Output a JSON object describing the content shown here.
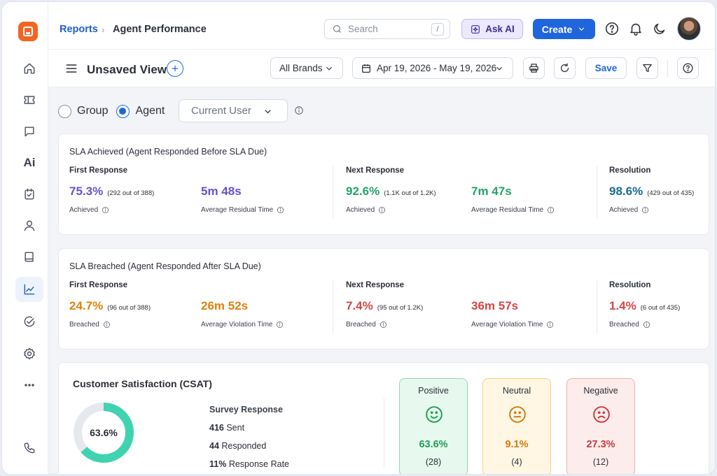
{
  "breadcrumb": {
    "root": "Reports",
    "separator": "›",
    "current": "Agent Performance"
  },
  "search": {
    "placeholder": "Search",
    "shortcut": "/"
  },
  "header": {
    "ask_ai": "Ask AI",
    "create": "Create"
  },
  "sidebar": {
    "ai_label": "Ai"
  },
  "toolbar": {
    "view_title": "Unsaved View",
    "brand_filter": "All Brands",
    "date_range": "Apr 19, 2026 - May 19, 2026",
    "save": "Save"
  },
  "filters": {
    "group_label": "Group",
    "agent_label": "Agent",
    "selected": "agent",
    "user_select": "Current User"
  },
  "sla_achieved": {
    "title": "SLA Achieved (Agent Responded Before SLA Due)",
    "first_response": {
      "head": "First Response",
      "pct": "75.3%",
      "note": "(292 out of 388)",
      "pct_label": "Achieved",
      "time": "5m 48s",
      "time_label": "Average Residual Time"
    },
    "next_response": {
      "head": "Next Response",
      "pct": "92.6%",
      "note": "(1.1K out of 1.2K)",
      "pct_label": "Achieved",
      "time": "7m 47s",
      "time_label": "Average Residual Time"
    },
    "resolution": {
      "head": "Resolution",
      "pct": "98.6%",
      "note": "(429 out of 435)",
      "pct_label": "Achieved"
    }
  },
  "sla_breached": {
    "title": "SLA Breached (Agent Responded After SLA Due)",
    "first_response": {
      "head": "First Response",
      "pct": "24.7%",
      "note": "(96 out of 388)",
      "pct_label": "Breached",
      "time": "26m 52s",
      "time_label": "Average Violation Time"
    },
    "next_response": {
      "head": "Next Response",
      "pct": "7.4%",
      "note": "(95 out of 1.2K)",
      "pct_label": "Breached",
      "time": "36m 57s",
      "time_label": "Average Violation Time"
    },
    "resolution": {
      "head": "Resolution",
      "pct": "1.4%",
      "note": "(6 out of 435)",
      "pct_label": "Breached"
    }
  },
  "csat": {
    "title": "Customer Satisfaction (CSAT)",
    "donut_value": 63.6,
    "donut_label": "63.6%",
    "survey_head": "Survey Response",
    "sent_value": "416",
    "sent_label": "Sent",
    "responded_value": "44",
    "responded_label": "Responded",
    "rate_value": "11%",
    "rate_label": "Response Rate",
    "positive": {
      "name": "Positive",
      "pct": "63.6%",
      "count": "(28)"
    },
    "neutral": {
      "name": "Neutral",
      "pct": "9.1%",
      "count": "(4)"
    },
    "negative": {
      "name": "Negative",
      "pct": "27.3%",
      "count": "(12)"
    }
  },
  "colors": {
    "primary": "#1f66dd",
    "donut": "#3fd3b0",
    "donut_track": "#e5e8ec",
    "positive_bg": "#e7f8ee",
    "positive_border": "#8fdcae",
    "positive_text": "#1f9c57",
    "neutral_bg": "#fff7e3",
    "neutral_border": "#f5d27a",
    "neutral_text": "#d0780d",
    "negative_bg": "#fdecec",
    "negative_border": "#f0b2b2",
    "negative_text": "#c93a3a"
  }
}
